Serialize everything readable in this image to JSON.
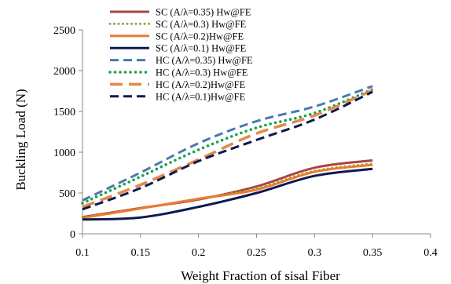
{
  "chart_data": {
    "type": "line",
    "title": "",
    "xlabel": "Weight Fraction of sisal Fiber",
    "ylabel": "Buckling Load (N)",
    "xlim": [
      0.1,
      0.4
    ],
    "ylim": [
      0,
      2500
    ],
    "xticks": [
      "0.1",
      "0.15",
      "0.2",
      "0.25",
      "0.3",
      "0.35",
      "0.4"
    ],
    "yticks": [
      "0",
      "500",
      "1000",
      "1500",
      "2000",
      "2500"
    ],
    "grid": false,
    "legend_position": "top-left",
    "series": [
      {
        "name": "SC (A/λ=0.35)  Hw@FE",
        "color": "#a8453f",
        "style": "solid",
        "x": [
          0.1,
          0.15,
          0.2,
          0.25,
          0.3,
          0.35
        ],
        "y": [
          205,
          315,
          420,
          580,
          810,
          900
        ]
      },
      {
        "name": "SC (A/λ=0.3) Hw@FE",
        "color": "#8ba44a",
        "style": "dotted",
        "x": [
          0.1,
          0.15,
          0.2,
          0.25,
          0.3,
          0.35
        ],
        "y": [
          200,
          312,
          425,
          560,
          770,
          860
        ]
      },
      {
        "name": "SC (A/λ=0.2)Hw@FE",
        "color": "#ec7b2e",
        "style": "solid",
        "x": [
          0.1,
          0.15,
          0.2,
          0.25,
          0.3,
          0.35
        ],
        "y": [
          195,
          310,
          430,
          540,
          760,
          845
        ]
      },
      {
        "name": "SC (A/λ=0.1)  Hw@FE",
        "color": "#0b1a4f",
        "style": "solid",
        "x": [
          0.1,
          0.15,
          0.2,
          0.25,
          0.3,
          0.35
        ],
        "y": [
          175,
          200,
          330,
          500,
          710,
          795
        ]
      },
      {
        "name": "HC (A/λ=0.35) Hw@FE",
        "color": "#4a79ad",
        "style": "dashed",
        "x": [
          0.1,
          0.15,
          0.2,
          0.25,
          0.3,
          0.35
        ],
        "y": [
          410,
          750,
          1110,
          1380,
          1560,
          1810
        ]
      },
      {
        "name": "HC (A/λ=0.3) Hw@FE",
        "color": "#15a34a",
        "style": "dotted-thick",
        "x": [
          0.1,
          0.15,
          0.2,
          0.25,
          0.3,
          0.35
        ],
        "y": [
          375,
          700,
          1030,
          1300,
          1480,
          1770
        ]
      },
      {
        "name": "HC  (A/λ=0.2)Hw@FE",
        "color": "#e48a4c",
        "style": "long-dash",
        "x": [
          0.1,
          0.15,
          0.2,
          0.25,
          0.3,
          0.35
        ],
        "y": [
          330,
          600,
          910,
          1230,
          1450,
          1760
        ]
      },
      {
        "name": "HC  (A/λ=0.1)Hw@FE",
        "color": "#0b1a4f",
        "style": "dashed",
        "x": [
          0.1,
          0.15,
          0.2,
          0.25,
          0.3,
          0.35
        ],
        "y": [
          300,
          560,
          890,
          1150,
          1400,
          1740
        ]
      }
    ]
  }
}
